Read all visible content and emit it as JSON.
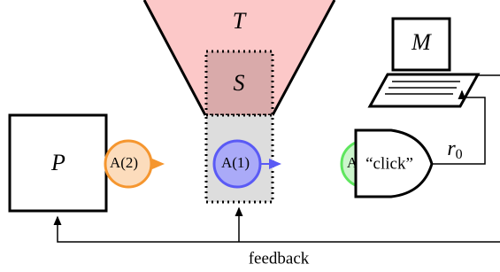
{
  "nodes": {
    "T": "T",
    "S": "S",
    "P": "P",
    "M": "M",
    "A2": "A(2)",
    "A1": "A(1)",
    "A": "A",
    "click": "“click”"
  },
  "edges": {
    "r0": {
      "symbol": "r",
      "subscript": "0"
    },
    "feedback": "feedback"
  }
}
